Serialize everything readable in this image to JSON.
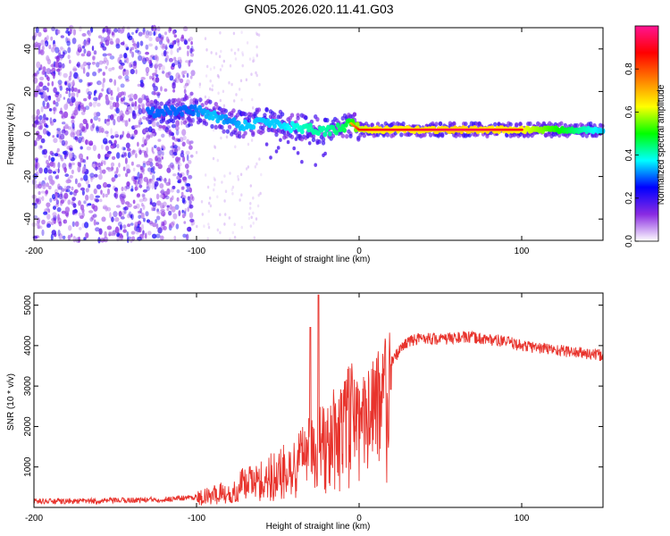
{
  "chart_data": [
    {
      "type": "heatmap",
      "title": "GN05.2026.020.11.41.G03",
      "xlabel": "Height of straight line (km)",
      "ylabel": "Frequency (Hz)",
      "xlim": [
        -200,
        150
      ],
      "ylim": [
        -50,
        50
      ],
      "x_ticks": [
        -200,
        -100,
        0,
        100
      ],
      "y_ticks": [
        -40,
        -20,
        0,
        20,
        40
      ],
      "colorbar": {
        "label": "Normalized spectral amplitude",
        "range": [
          0,
          1
        ],
        "ticks": [
          0.0,
          0.2,
          0.4,
          0.6,
          0.8
        ],
        "colors": [
          "#ffffff",
          "#8a2be2",
          "#0000ff",
          "#00ffff",
          "#00ff00",
          "#ffff00",
          "#ff7f00",
          "#ff0000",
          "#ff1493"
        ]
      },
      "ridge": {
        "x": [
          -130,
          -120,
          -110,
          -100,
          -90,
          -80,
          -70,
          -60,
          -50,
          -40,
          -30,
          -20,
          -10,
          -5,
          0,
          10,
          30,
          60,
          100,
          150
        ],
        "frequency": [
          10,
          11,
          11,
          11,
          9,
          6,
          4,
          6,
          5,
          3,
          3,
          1,
          3,
          5,
          2,
          2,
          2,
          2,
          2,
          2
        ],
        "amplitude": [
          0.25,
          0.3,
          0.3,
          0.45,
          0.5,
          0.45,
          0.5,
          0.5,
          0.5,
          0.55,
          0.6,
          0.6,
          0.65,
          0.7,
          0.85,
          0.9,
          0.9,
          0.95,
          0.9,
          0.5
        ]
      },
      "noise_region_x": [
        -200,
        -100
      ]
    },
    {
      "type": "line",
      "xlabel": "Height of straight line (km)",
      "ylabel": "SNR (10 * v/v)",
      "xlim": [
        -200,
        150
      ],
      "ylim": [
        0,
        5300
      ],
      "x_ticks": [
        -200,
        -100,
        0,
        100
      ],
      "y_ticks": [
        1000,
        2000,
        3000,
        4000,
        5000
      ],
      "series": [
        {
          "name": "SNR",
          "color": "#e8332c",
          "x": [
            -200,
            -180,
            -160,
            -140,
            -120,
            -100,
            -90,
            -80,
            -70,
            -60,
            -50,
            -40,
            -35,
            -30,
            -25,
            -20,
            -15,
            -10,
            -5,
            0,
            5,
            10,
            15,
            20,
            25,
            30,
            40,
            50,
            60,
            70,
            80,
            90,
            100,
            110,
            120,
            130,
            140,
            150
          ],
          "y": [
            150,
            150,
            160,
            180,
            200,
            260,
            330,
            500,
            700,
            850,
            1000,
            1250,
            1500,
            1700,
            1900,
            2100,
            2400,
            2700,
            2900,
            2500,
            2600,
            3000,
            3300,
            3600,
            3900,
            4100,
            4200,
            4150,
            4200,
            4200,
            4150,
            4100,
            4000,
            3950,
            3900,
            3850,
            3800,
            3750
          ]
        }
      ]
    }
  ]
}
